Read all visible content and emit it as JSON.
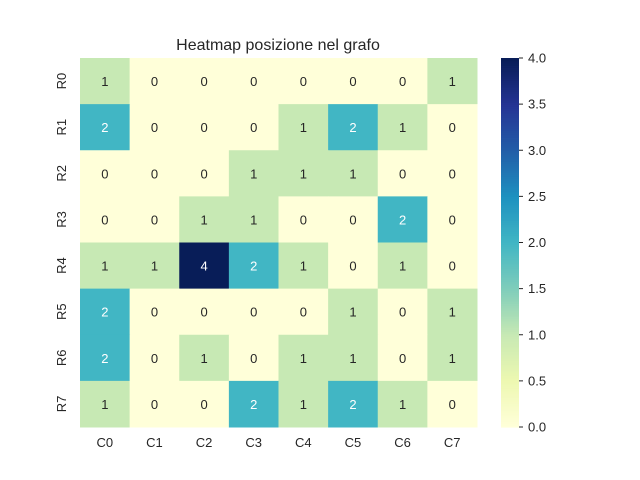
{
  "chart_data": {
    "type": "heatmap",
    "title": "Heatmap posizione nel grafo",
    "xlabel": "",
    "ylabel": "",
    "rows": [
      "R0",
      "R1",
      "R2",
      "R3",
      "R4",
      "R5",
      "R6",
      "R7"
    ],
    "columns": [
      "C0",
      "C1",
      "C2",
      "C3",
      "C4",
      "C5",
      "C6",
      "C7"
    ],
    "values": [
      [
        1,
        0,
        0,
        0,
        0,
        0,
        0,
        1
      ],
      [
        2,
        0,
        0,
        0,
        1,
        2,
        1,
        0
      ],
      [
        0,
        0,
        0,
        1,
        1,
        1,
        0,
        0
      ],
      [
        0,
        0,
        1,
        1,
        0,
        0,
        2,
        0
      ],
      [
        1,
        1,
        4,
        2,
        1,
        0,
        1,
        0
      ],
      [
        2,
        0,
        0,
        0,
        0,
        1,
        0,
        1
      ],
      [
        2,
        0,
        1,
        0,
        1,
        1,
        0,
        1
      ],
      [
        1,
        0,
        0,
        2,
        1,
        2,
        1,
        0
      ]
    ],
    "vmin": 0,
    "vmax": 4,
    "colorbar_ticks": [
      "0.0",
      "0.5",
      "1.0",
      "1.5",
      "2.0",
      "2.5",
      "3.0",
      "3.5",
      "4.0"
    ],
    "colormap": "YlGnBu",
    "colormap_stops": [
      "#ffffd9",
      "#edf8b1",
      "#c7e9b4",
      "#7fcdbb",
      "#41b6c4",
      "#1d91c0",
      "#225ea8",
      "#253494",
      "#081d58"
    ],
    "grid": false,
    "colorbar_position": "right"
  }
}
